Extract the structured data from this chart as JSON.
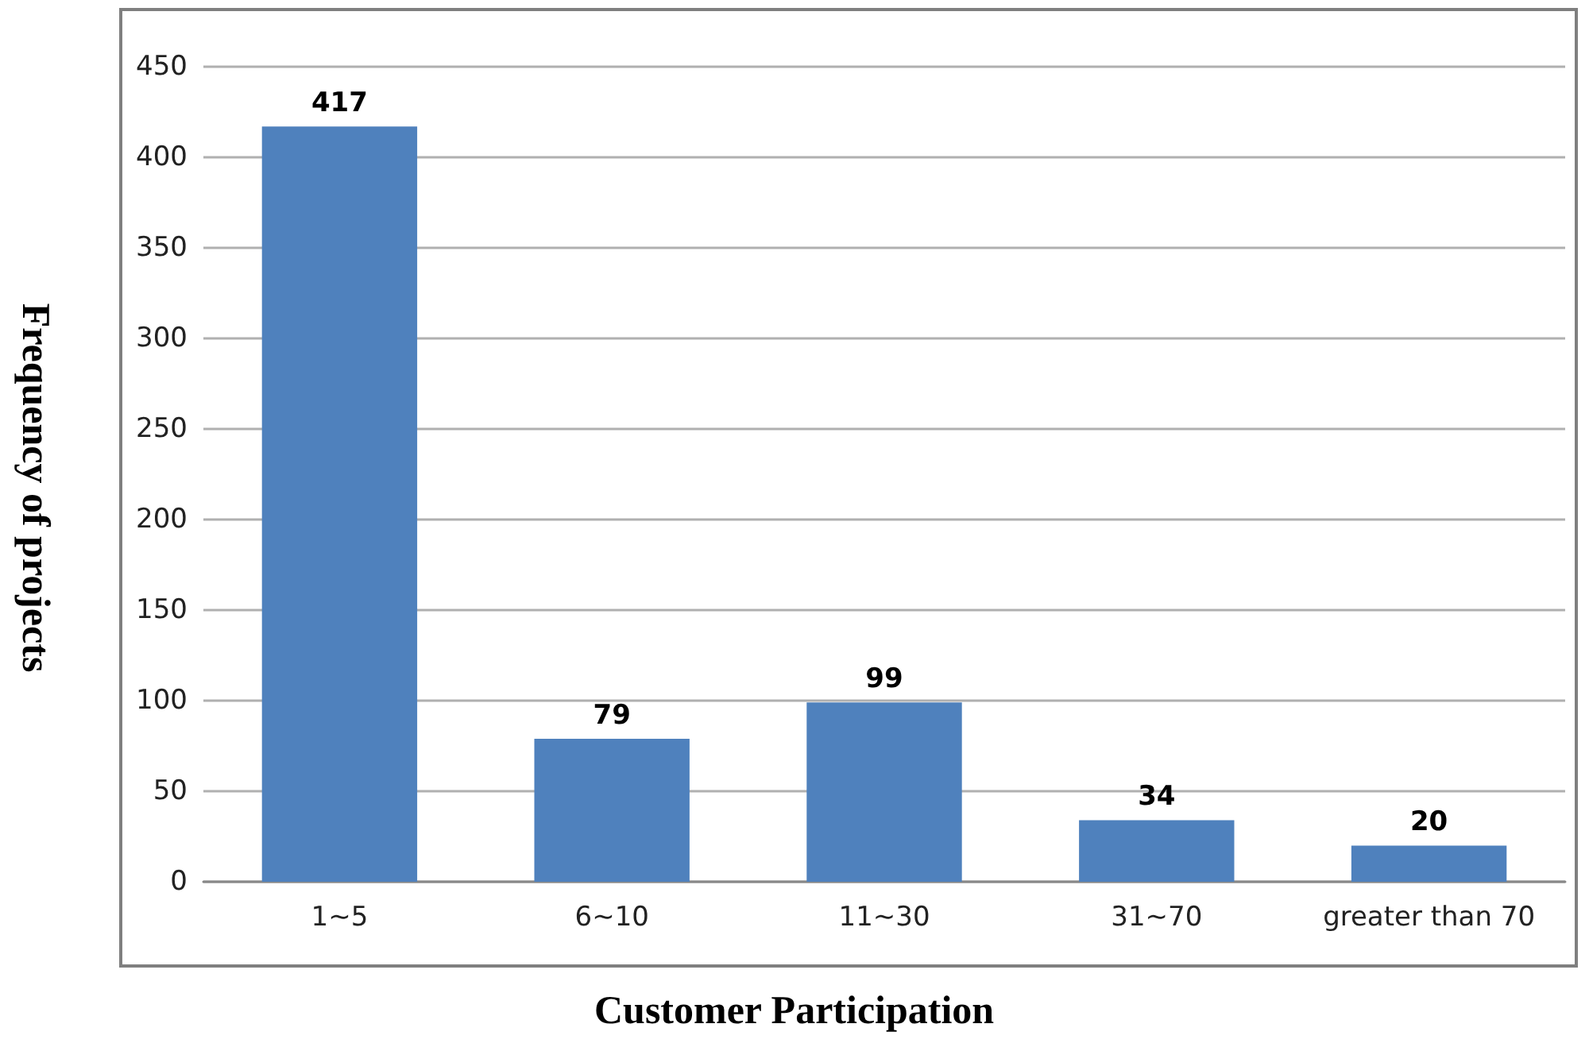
{
  "chart_data": {
    "type": "bar",
    "xlabel": "Customer Participation",
    "ylabel": "Frequency of projects",
    "categories": [
      "1~5",
      "6~10",
      "11~30",
      "31~70",
      "greater than 70"
    ],
    "values": [
      417,
      79,
      99,
      34,
      20
    ],
    "color": "#4f81bd",
    "ylim": [
      0,
      450
    ],
    "yticks": [
      0,
      50,
      100,
      150,
      200,
      250,
      300,
      350,
      400,
      450
    ],
    "grid": "y",
    "data_labels": true
  }
}
